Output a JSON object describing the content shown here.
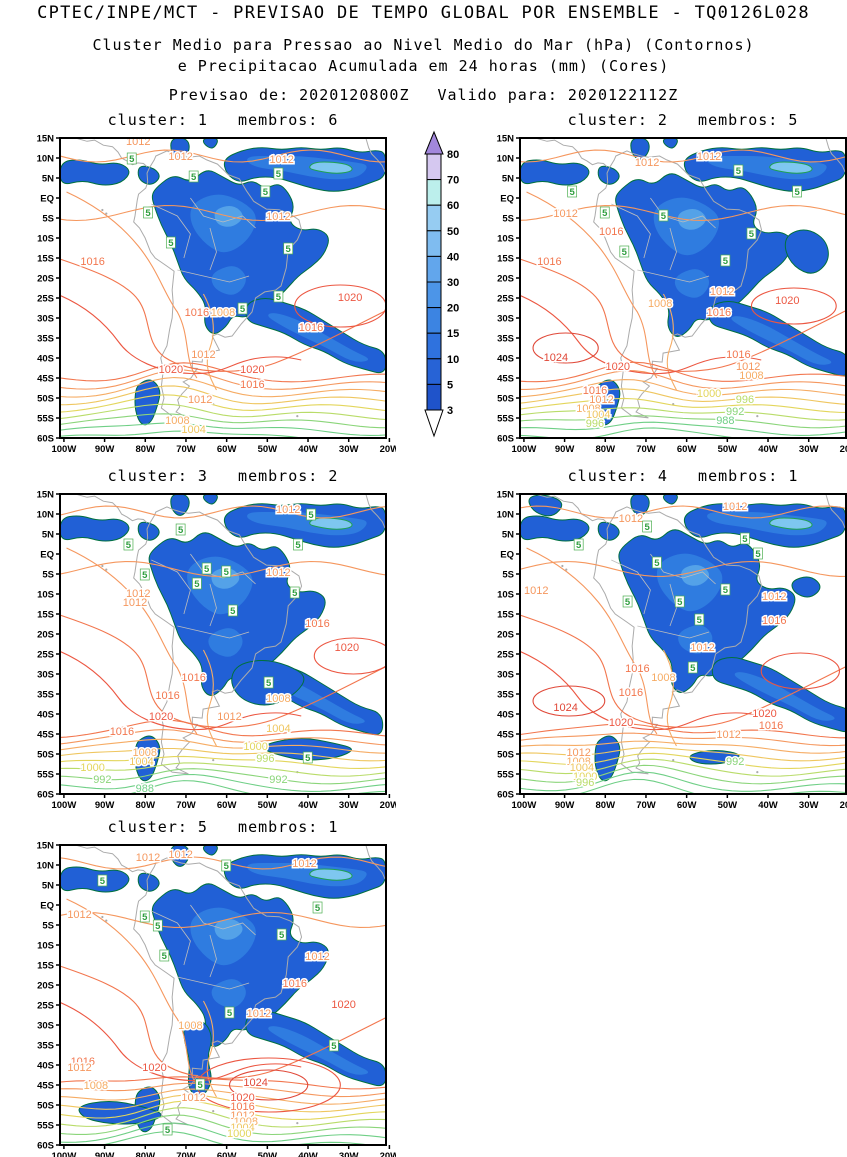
{
  "header": {
    "title": "CPTEC/INPE/MCT - PREVISAO DE TEMPO GLOBAL POR ENSEMBLE - TQ0126L028",
    "subtitle1": "Cluster Medio para Pressao ao Nivel Medio do Mar (hPa) (Contornos)",
    "subtitle2": "e Precipitacao Acumulada em 24 horas (mm) (Cores)",
    "issued_label": "Previsao de:",
    "issued": "2020120800Z",
    "valid_label": "Valido para:",
    "valid": "2020122112Z"
  },
  "colorbar": {
    "labels_bottom_to_top": [
      "3",
      "5",
      "10",
      "15",
      "20",
      "30",
      "40",
      "50",
      "60",
      "70",
      "80"
    ],
    "segment_colors_bottom_to_top": [
      "#1F53CA",
      "#2763D6",
      "#2F72DE",
      "#3C84E2",
      "#4C95E8",
      "#62A6EC",
      "#7FBCF0",
      "#96CCF2",
      "#BCEFEC",
      "#D5C8F0"
    ],
    "over_color": "#A287DC",
    "under_color": "#FFFFFF"
  },
  "chart_data": {
    "type": "heatmap",
    "subtype": "ensemble cluster-mean filled contour maps over South America",
    "shaded_variable": "Precipitacao Acumulada em 24 horas (mm)",
    "contour_variable": "Pressao ao Nivel Medio do Mar (hPa)",
    "precip_levels_mm": [
      3,
      5,
      10,
      15,
      20,
      30,
      40,
      50,
      60,
      70,
      80
    ],
    "precip_contour_label": "5",
    "lat_ticks": [
      "15N",
      "10N",
      "5N",
      "EQ",
      "5S",
      "10S",
      "15S",
      "20S",
      "25S",
      "30S",
      "35S",
      "40S",
      "45S",
      "50S",
      "55S",
      "60S"
    ],
    "lon_ticks": [
      "100W",
      "90W",
      "80W",
      "70W",
      "60W",
      "50W",
      "40W",
      "30W",
      "20W"
    ],
    "panels": [
      {
        "cluster": "1",
        "membros": "6",
        "title": "cluster: 1   membros: 6",
        "pressure_labels": [
          {
            "v": "1012",
            "x": 24,
            "y": 1
          },
          {
            "v": "1012",
            "x": 37,
            "y": 6
          },
          {
            "v": "1012",
            "x": 68,
            "y": 7
          },
          {
            "v": "1012",
            "x": 67,
            "y": 26
          },
          {
            "v": "1016",
            "x": 10,
            "y": 41
          },
          {
            "v": "1020",
            "x": 89,
            "y": 53
          },
          {
            "v": "1016",
            "x": 42,
            "y": 58
          },
          {
            "v": "1008",
            "x": 50,
            "y": 58
          },
          {
            "v": "1016",
            "x": 77,
            "y": 63
          },
          {
            "v": "1012",
            "x": 44,
            "y": 72
          },
          {
            "v": "1020",
            "x": 34,
            "y": 77
          },
          {
            "v": "1020",
            "x": 59,
            "y": 77
          },
          {
            "v": "1016",
            "x": 59,
            "y": 82
          },
          {
            "v": "1012",
            "x": 43,
            "y": 87
          },
          {
            "v": "1008",
            "x": 36,
            "y": 94
          },
          {
            "v": "1004",
            "x": 41,
            "y": 97
          }
        ],
        "precip_labels": [
          {
            "x": 22,
            "y": 7
          },
          {
            "x": 41,
            "y": 13
          },
          {
            "x": 67,
            "y": 12
          },
          {
            "x": 63,
            "y": 18
          },
          {
            "x": 27,
            "y": 25
          },
          {
            "x": 34,
            "y": 35
          },
          {
            "x": 70,
            "y": 37
          },
          {
            "x": 67,
            "y": 53
          },
          {
            "x": 56,
            "y": 57
          }
        ]
      },
      {
        "cluster": "2",
        "membros": "5",
        "title": "cluster: 2   membros: 5",
        "pressure_labels": [
          {
            "v": "1012",
            "x": 58,
            "y": 6
          },
          {
            "v": "1012",
            "x": 39,
            "y": 8
          },
          {
            "v": "1012",
            "x": 14,
            "y": 25
          },
          {
            "v": "1016",
            "x": 28,
            "y": 31
          },
          {
            "v": "1016",
            "x": 9,
            "y": 41
          },
          {
            "v": "1012",
            "x": 62,
            "y": 51
          },
          {
            "v": "1008",
            "x": 43,
            "y": 55
          },
          {
            "v": "1020",
            "x": 82,
            "y": 54
          },
          {
            "v": "1016",
            "x": 61,
            "y": 58
          },
          {
            "v": "1024",
            "x": 11,
            "y": 73
          },
          {
            "v": "1016",
            "x": 67,
            "y": 72
          },
          {
            "v": "1012",
            "x": 70,
            "y": 76
          },
          {
            "v": "1008",
            "x": 71,
            "y": 79
          },
          {
            "v": "1020",
            "x": 30,
            "y": 76
          },
          {
            "v": "1016",
            "x": 23,
            "y": 84
          },
          {
            "v": "1012",
            "x": 25,
            "y": 87
          },
          {
            "v": "1008",
            "x": 21,
            "y": 90
          },
          {
            "v": "1004",
            "x": 24,
            "y": 92
          },
          {
            "v": "1000",
            "x": 58,
            "y": 85
          },
          {
            "v": "996",
            "x": 69,
            "y": 87
          },
          {
            "v": "992",
            "x": 66,
            "y": 91
          },
          {
            "v": "988",
            "x": 63,
            "y": 94
          },
          {
            "v": "996",
            "x": 23,
            "y": 95
          }
        ],
        "precip_labels": [
          {
            "x": 67,
            "y": 11
          },
          {
            "x": 16,
            "y": 18
          },
          {
            "x": 85,
            "y": 18
          },
          {
            "x": 26,
            "y": 25
          },
          {
            "x": 44,
            "y": 26
          },
          {
            "x": 71,
            "y": 32
          },
          {
            "x": 32,
            "y": 38
          },
          {
            "x": 63,
            "y": 41
          }
        ]
      },
      {
        "cluster": "3",
        "membros": "2",
        "title": "cluster: 3   membros: 2",
        "pressure_labels": [
          {
            "v": "1012",
            "x": 70,
            "y": 5
          },
          {
            "v": "1012",
            "x": 67,
            "y": 26
          },
          {
            "v": "1012",
            "x": 24,
            "y": 33
          },
          {
            "v": "1012",
            "x": 23,
            "y": 36
          },
          {
            "v": "1016",
            "x": 79,
            "y": 43
          },
          {
            "v": "1020",
            "x": 88,
            "y": 51
          },
          {
            "v": "1016",
            "x": 41,
            "y": 61
          },
          {
            "v": "1016",
            "x": 33,
            "y": 67
          },
          {
            "v": "1008",
            "x": 67,
            "y": 68
          },
          {
            "v": "1020",
            "x": 31,
            "y": 74
          },
          {
            "v": "1012",
            "x": 52,
            "y": 74
          },
          {
            "v": "1004",
            "x": 67,
            "y": 78
          },
          {
            "v": "1016",
            "x": 19,
            "y": 79
          },
          {
            "v": "1000",
            "x": 60,
            "y": 84
          },
          {
            "v": "1008",
            "x": 26,
            "y": 86
          },
          {
            "v": "1004",
            "x": 25,
            "y": 89
          },
          {
            "v": "996",
            "x": 63,
            "y": 88
          },
          {
            "v": "1000",
            "x": 10,
            "y": 91
          },
          {
            "v": "992",
            "x": 13,
            "y": 95
          },
          {
            "v": "992",
            "x": 67,
            "y": 95
          },
          {
            "v": "988",
            "x": 26,
            "y": 98
          }
        ],
        "precip_labels": [
          {
            "x": 77,
            "y": 7
          },
          {
            "x": 37,
            "y": 12
          },
          {
            "x": 21,
            "y": 17
          },
          {
            "x": 73,
            "y": 17
          },
          {
            "x": 45,
            "y": 25
          },
          {
            "x": 51,
            "y": 26
          },
          {
            "x": 26,
            "y": 27
          },
          {
            "x": 42,
            "y": 30
          },
          {
            "x": 72,
            "y": 33
          },
          {
            "x": 53,
            "y": 39
          },
          {
            "x": 64,
            "y": 63
          },
          {
            "x": 76,
            "y": 88
          }
        ]
      },
      {
        "cluster": "4",
        "membros": "1",
        "title": "cluster: 4   membros: 1",
        "pressure_labels": [
          {
            "v": "1012",
            "x": 66,
            "y": 4
          },
          {
            "v": "1012",
            "x": 34,
            "y": 8
          },
          {
            "v": "1012",
            "x": 5,
            "y": 32
          },
          {
            "v": "1012",
            "x": 78,
            "y": 34
          },
          {
            "v": "1016",
            "x": 78,
            "y": 42
          },
          {
            "v": "1012",
            "x": 56,
            "y": 51
          },
          {
            "v": "1016",
            "x": 36,
            "y": 58
          },
          {
            "v": "1008",
            "x": 44,
            "y": 61
          },
          {
            "v": "1016",
            "x": 34,
            "y": 66
          },
          {
            "v": "1024",
            "x": 14,
            "y": 71
          },
          {
            "v": "1020",
            "x": 75,
            "y": 73
          },
          {
            "v": "1020",
            "x": 31,
            "y": 76
          },
          {
            "v": "1016",
            "x": 77,
            "y": 77
          },
          {
            "v": "1012",
            "x": 64,
            "y": 80
          },
          {
            "v": "1012",
            "x": 18,
            "y": 86
          },
          {
            "v": "1008",
            "x": 18,
            "y": 89
          },
          {
            "v": "1004",
            "x": 19,
            "y": 91
          },
          {
            "v": "992",
            "x": 66,
            "y": 89
          },
          {
            "v": "1000",
            "x": 20,
            "y": 94
          },
          {
            "v": "996",
            "x": 20,
            "y": 96
          }
        ],
        "precip_labels": [
          {
            "x": 18,
            "y": 17
          },
          {
            "x": 39,
            "y": 11
          },
          {
            "x": 69,
            "y": 15
          },
          {
            "x": 73,
            "y": 20
          },
          {
            "x": 42,
            "y": 23
          },
          {
            "x": 63,
            "y": 32
          },
          {
            "x": 33,
            "y": 36
          },
          {
            "x": 49,
            "y": 36
          },
          {
            "x": 55,
            "y": 42
          },
          {
            "x": 53,
            "y": 58
          }
        ]
      },
      {
        "cluster": "5",
        "membros": "1",
        "title": "cluster: 5   membros: 1",
        "pressure_labels": [
          {
            "v": "1012",
            "x": 27,
            "y": 4
          },
          {
            "v": "1012",
            "x": 37,
            "y": 3
          },
          {
            "v": "1012",
            "x": 75,
            "y": 6
          },
          {
            "v": "1012",
            "x": 6,
            "y": 23
          },
          {
            "v": "1012",
            "x": 79,
            "y": 37
          },
          {
            "v": "1016",
            "x": 72,
            "y": 46
          },
          {
            "v": "1020",
            "x": 87,
            "y": 53
          },
          {
            "v": "1012",
            "x": 61,
            "y": 56
          },
          {
            "v": "1008",
            "x": 40,
            "y": 60
          },
          {
            "v": "1016",
            "x": 7,
            "y": 72
          },
          {
            "v": "1012",
            "x": 6,
            "y": 74
          },
          {
            "v": "1020",
            "x": 29,
            "y": 74
          },
          {
            "v": "1024",
            "x": 60,
            "y": 79
          },
          {
            "v": "1008",
            "x": 11,
            "y": 80
          },
          {
            "v": "1012",
            "x": 41,
            "y": 84
          },
          {
            "v": "1020",
            "x": 56,
            "y": 84
          },
          {
            "v": "1016",
            "x": 56,
            "y": 87
          },
          {
            "v": "1012",
            "x": 56,
            "y": 90
          },
          {
            "v": "1008",
            "x": 57,
            "y": 92
          },
          {
            "v": "1004",
            "x": 56,
            "y": 94
          },
          {
            "v": "1000",
            "x": 55,
            "y": 96
          }
        ],
        "precip_labels": [
          {
            "x": 51,
            "y": 7
          },
          {
            "x": 13,
            "y": 12
          },
          {
            "x": 79,
            "y": 21
          },
          {
            "x": 26,
            "y": 24
          },
          {
            "x": 30,
            "y": 27
          },
          {
            "x": 68,
            "y": 30
          },
          {
            "x": 32,
            "y": 37
          },
          {
            "x": 52,
            "y": 56
          },
          {
            "x": 84,
            "y": 67
          },
          {
            "x": 43,
            "y": 80
          },
          {
            "x": 33,
            "y": 95
          }
        ]
      }
    ]
  }
}
